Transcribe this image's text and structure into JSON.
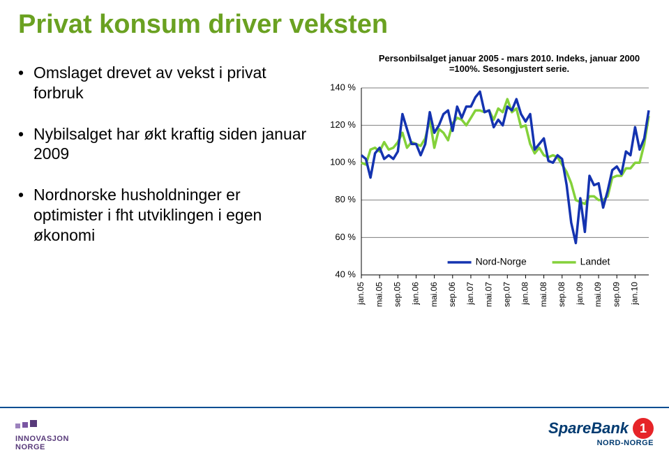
{
  "title": "Privat konsum driver veksten",
  "title_color": "#6aa121",
  "title_fontsize": 38,
  "bullets": [
    "Omslaget drevet av vekst i privat forbruk",
    "Nybilsalget har økt kraftig siden januar 2009",
    "Nordnorske husholdninger er optimister i fht utviklingen i egen økonomi"
  ],
  "bullet_fontsize": 23,
  "chart": {
    "type": "line",
    "title": "Personbilsalget januar 2005 - mars 2010. Indeks, januar 2000 =100%. Sesongjustert serie.",
    "title_fontsize": 13,
    "ylim": [
      40,
      140
    ],
    "ytick_step": 20,
    "background_color": "#ffffff",
    "grid_color": "#7d7d7d",
    "axis_color": "#000000",
    "line_width": 3.5,
    "x_index_range": [
      0,
      63
    ],
    "x_categories": [
      "jan.05",
      "mai.05",
      "sep.05",
      "jan.06",
      "mai.06",
      "sep.06",
      "jan.07",
      "mai.07",
      "sep.07",
      "jan.08",
      "mai.08",
      "sep.08",
      "jan.09",
      "mai.09",
      "sep.09",
      "jan.10"
    ],
    "x_category_indices": [
      0,
      4,
      8,
      12,
      16,
      20,
      24,
      28,
      32,
      36,
      40,
      44,
      48,
      52,
      56,
      60
    ],
    "xtick_rotation": -90,
    "xtick_fontsize": 12,
    "ytick_fontsize": 13,
    "legend": {
      "items": [
        {
          "label": "Nord-Norge",
          "color": "#1433b0"
        },
        {
          "label": "Landet",
          "color": "#84d13a"
        }
      ],
      "position": "bottom-inside"
    },
    "series": [
      {
        "name": "Nord-Norge",
        "color": "#1433b0",
        "values": [
          104,
          102,
          92,
          105,
          108,
          102,
          104,
          102,
          106,
          126,
          118,
          110,
          110,
          104,
          110,
          127,
          116,
          120,
          126,
          128,
          117,
          130,
          124,
          130,
          130,
          135,
          138,
          127,
          128,
          119,
          123,
          120,
          130,
          128,
          134,
          126,
          122,
          126,
          107,
          110,
          113,
          101,
          100,
          104,
          102,
          88,
          68,
          57,
          81,
          63,
          93,
          88,
          89,
          76,
          85,
          96,
          98,
          94,
          106,
          104,
          119,
          107,
          113,
          128
        ]
      },
      {
        "name": "Landet",
        "color": "#84d13a",
        "values": [
          100,
          99,
          107,
          108,
          106,
          111,
          107,
          108,
          111,
          116,
          108,
          111,
          110,
          109,
          113,
          123,
          108,
          118,
          116,
          112,
          121,
          124,
          123,
          120,
          124,
          128,
          128,
          127,
          128,
          123,
          129,
          127,
          134,
          127,
          129,
          119,
          120,
          110,
          105,
          108,
          104,
          103,
          104,
          103,
          99,
          95,
          89,
          80,
          79,
          78,
          82,
          82,
          80,
          80,
          82,
          92,
          93,
          93,
          97,
          97,
          100,
          100,
          110,
          125
        ]
      }
    ]
  },
  "footer": {
    "divider_color": "#004d92",
    "left_logo_text": [
      "INNOVASJON",
      "NORGE"
    ],
    "left_logo_color": "#583a7a",
    "right_logo_main": "SpareBank",
    "right_logo_sub": "NORD-NORGE",
    "right_logo_color": "#003a70",
    "right_badge_bg": "#e62428",
    "right_badge_text": "1"
  }
}
